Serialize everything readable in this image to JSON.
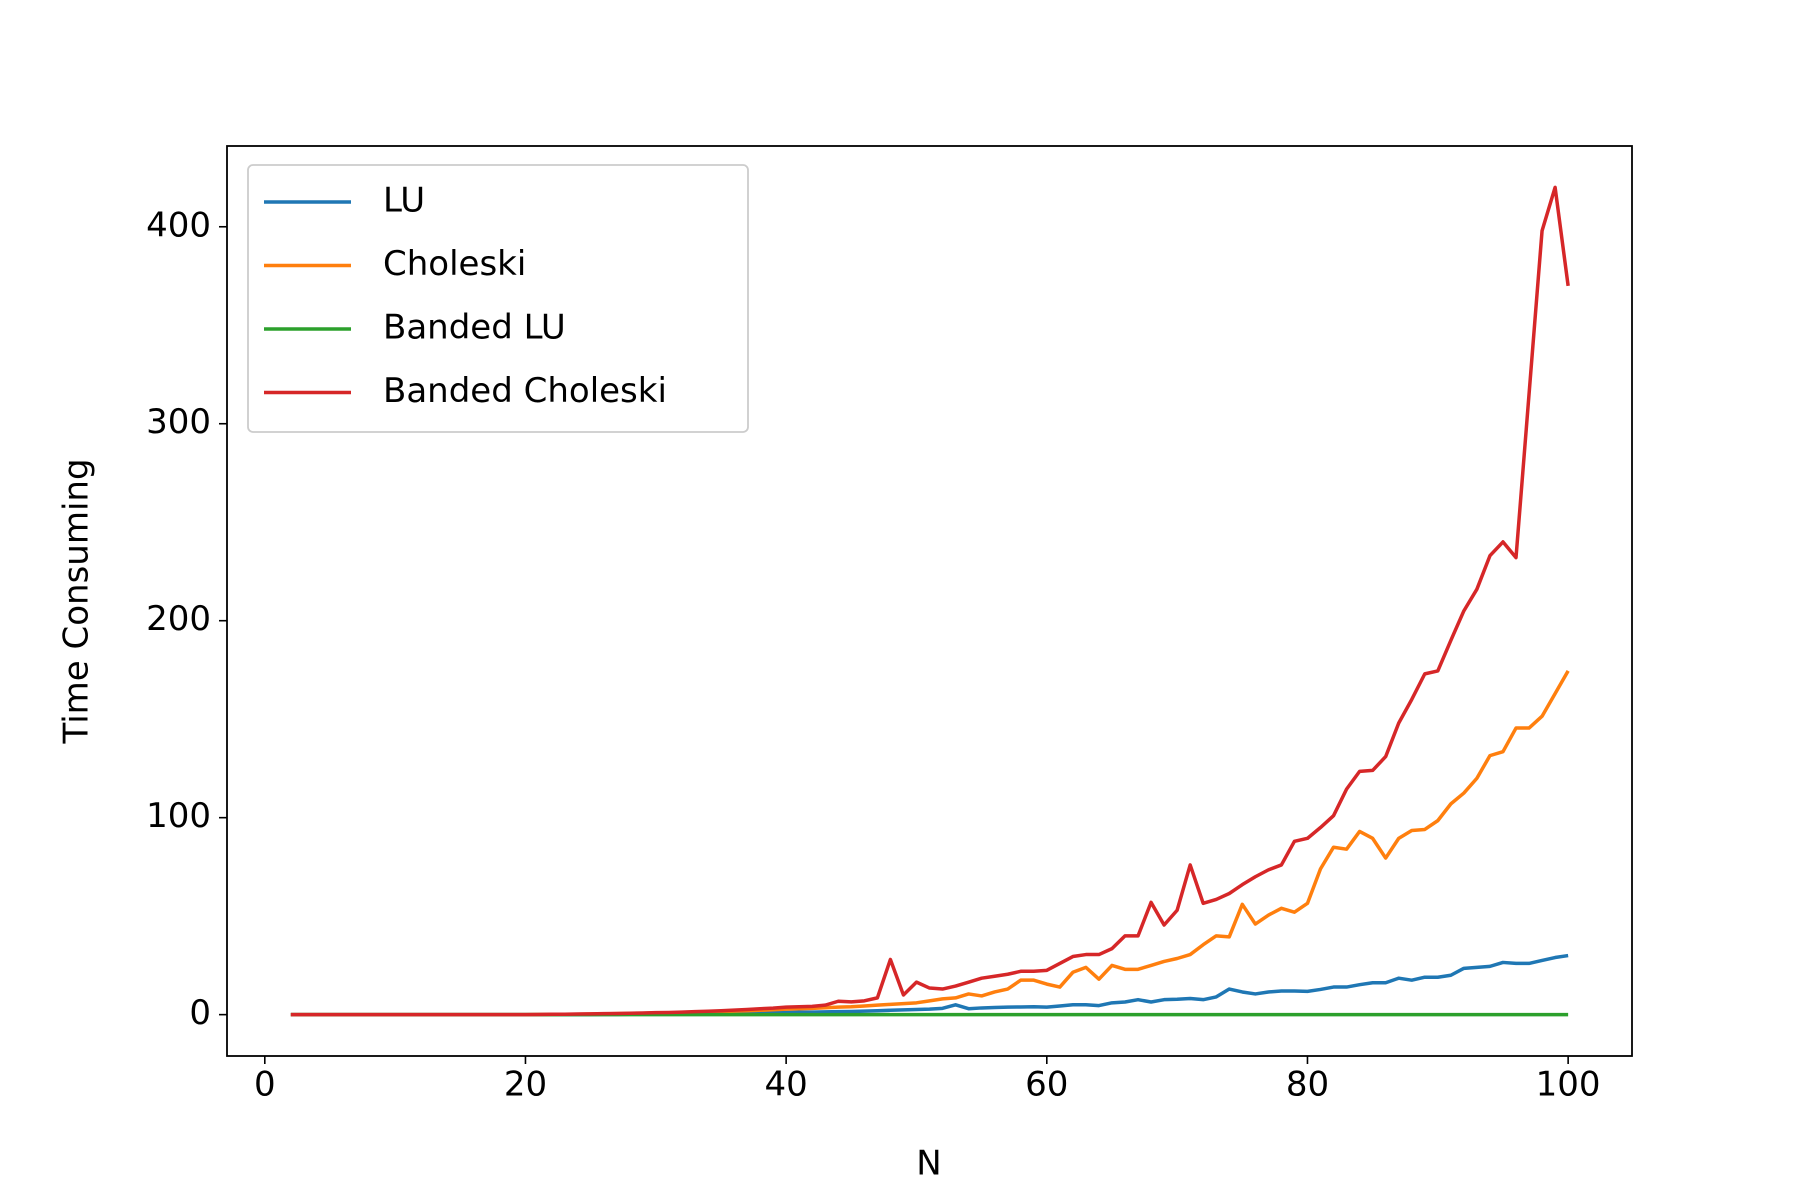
{
  "chart_data": {
    "type": "line",
    "x_label": "N",
    "y_label": "Time Consuming",
    "x": [
      2,
      3,
      4,
      5,
      6,
      7,
      8,
      9,
      10,
      11,
      12,
      13,
      14,
      15,
      16,
      17,
      18,
      19,
      20,
      21,
      22,
      23,
      24,
      25,
      26,
      27,
      28,
      29,
      30,
      31,
      32,
      33,
      34,
      35,
      36,
      37,
      38,
      39,
      40,
      41,
      42,
      43,
      44,
      45,
      46,
      47,
      48,
      49,
      50,
      51,
      52,
      53,
      54,
      55,
      56,
      57,
      58,
      59,
      60,
      61,
      62,
      63,
      64,
      65,
      66,
      67,
      68,
      69,
      70,
      71,
      72,
      73,
      74,
      75,
      76,
      77,
      78,
      79,
      80,
      81,
      82,
      83,
      84,
      85,
      86,
      87,
      88,
      89,
      90,
      91,
      92,
      93,
      94,
      95,
      96,
      97,
      98,
      99,
      100
    ],
    "series": [
      {
        "name": "LU",
        "color": "#1f77b4",
        "values": [
          0,
          0,
          0,
          0,
          0,
          0,
          0,
          0,
          0,
          0,
          0,
          0,
          0,
          0,
          0,
          0,
          0,
          0,
          0,
          0,
          0,
          0,
          0,
          0,
          0.1,
          0.1,
          0.2,
          0.2,
          0.3,
          0.3,
          0.4,
          0.4,
          0.5,
          0.6,
          0.7,
          0.8,
          0.9,
          1.0,
          1.1,
          1.2,
          1.3,
          1.4,
          1.5,
          1.6,
          1.8,
          2.0,
          2.2,
          2.4,
          2.6,
          2.8,
          3.2,
          5.0,
          3.0,
          3.4,
          3.6,
          3.8,
          3.9,
          4.0,
          3.8,
          4.4,
          5.0,
          5.0,
          4.6,
          6.0,
          6.4,
          7.6,
          6.4,
          7.6,
          7.8,
          8.2,
          7.6,
          9.0,
          13.0,
          11.5,
          10.5,
          11.5,
          12.0,
          12.0,
          11.8,
          12.8,
          14.0,
          14.0,
          15.2,
          16.2,
          16.2,
          18.5,
          17.5,
          19.0,
          19.0,
          20.0,
          23.5,
          24.0,
          24.5,
          26.5,
          26.0,
          26.0,
          27.5,
          29.0,
          30.0
        ]
      },
      {
        "name": "Choleski",
        "color": "#ff7f0e",
        "values": [
          0,
          0,
          0,
          0,
          0,
          0,
          0,
          0,
          0,
          0,
          0,
          0,
          0,
          0,
          0,
          0,
          0,
          0,
          0,
          0.1,
          0.1,
          0.2,
          0.2,
          0.3,
          0.4,
          0.5,
          0.6,
          0.7,
          0.8,
          0.9,
          1.0,
          1.2,
          1.4,
          1.6,
          1.8,
          2.0,
          2.2,
          2.5,
          2.8,
          3.0,
          3.2,
          3.5,
          3.8,
          4.0,
          4.4,
          4.8,
          5.2,
          5.6,
          6.0,
          7.0,
          8.0,
          8.5,
          10.5,
          9.5,
          11.5,
          13.0,
          17.5,
          17.5,
          15.5,
          14.0,
          21.5,
          24.0,
          18.0,
          25.0,
          23.0,
          23.0,
          25.0,
          27.0,
          28.5,
          30.5,
          35.5,
          40.0,
          39.5,
          56.0,
          46.0,
          50.5,
          54.0,
          52.0,
          56.5,
          74.0,
          85.0,
          84.0,
          93.0,
          89.5,
          79.5,
          89.5,
          93.5,
          94.0,
          98.5,
          107.0,
          112.5,
          120.0,
          131.5,
          133.5,
          145.5,
          145.5,
          151.5,
          163.0,
          174.5
        ]
      },
      {
        "name": "Banded LU",
        "color": "#2ca02c",
        "values": [
          0,
          0,
          0,
          0,
          0,
          0,
          0,
          0,
          0,
          0,
          0,
          0,
          0,
          0,
          0,
          0,
          0,
          0,
          0,
          0,
          0,
          0,
          0,
          0,
          0,
          0,
          0,
          0,
          0,
          0,
          0,
          0,
          0,
          0,
          0,
          0,
          0,
          0,
          0,
          0,
          0,
          0,
          0,
          0,
          0,
          0,
          0,
          0,
          0,
          0,
          0,
          0,
          0,
          0,
          0,
          0,
          0,
          0,
          0,
          0,
          0,
          0,
          0,
          0,
          0,
          0,
          0,
          0,
          0,
          0,
          0,
          0,
          0,
          0,
          0,
          0,
          0,
          0,
          0,
          0,
          0,
          0,
          0,
          0,
          0,
          0,
          0,
          0,
          0,
          0,
          0,
          0,
          0,
          0,
          0,
          0,
          0,
          0,
          0
        ]
      },
      {
        "name": "Banded Choleski",
        "color": "#d62728",
        "values": [
          0,
          0,
          0,
          0,
          0,
          0,
          0,
          0,
          0,
          0,
          0,
          0,
          0,
          0,
          0,
          0,
          0,
          0,
          0,
          0.1,
          0.2,
          0.2,
          0.3,
          0.4,
          0.5,
          0.6,
          0.7,
          0.8,
          1.0,
          1.1,
          1.3,
          1.5,
          1.7,
          2.0,
          2.3,
          2.6,
          3.0,
          3.3,
          3.8,
          4.0,
          4.2,
          4.8,
          6.8,
          6.5,
          7.0,
          8.5,
          28.0,
          10.0,
          16.5,
          13.5,
          13.0,
          14.5,
          16.5,
          18.5,
          19.5,
          20.5,
          22.0,
          22.0,
          22.5,
          26.0,
          29.5,
          30.5,
          30.5,
          33.5,
          40.0,
          40.0,
          57.0,
          45.5,
          53.0,
          76.0,
          56.5,
          58.5,
          61.5,
          66.0,
          70.0,
          73.5,
          76.0,
          88.0,
          89.5,
          95.0,
          101.0,
          114.5,
          123.5,
          124.0,
          131.0,
          148.0,
          160.0,
          173.0,
          174.5,
          190.0,
          205.0,
          216.0,
          233.0,
          240.0,
          232.0,
          315.0,
          398.0,
          420.0,
          370.0
        ]
      }
    ],
    "xlim": [
      -2.9,
      104.9
    ],
    "xticks": [
      0,
      20,
      40,
      60,
      80,
      100
    ],
    "ylim": [
      -21,
      441
    ],
    "yticks": [
      0,
      100,
      200,
      300,
      400
    ],
    "grid": false,
    "legend": "upper left"
  }
}
